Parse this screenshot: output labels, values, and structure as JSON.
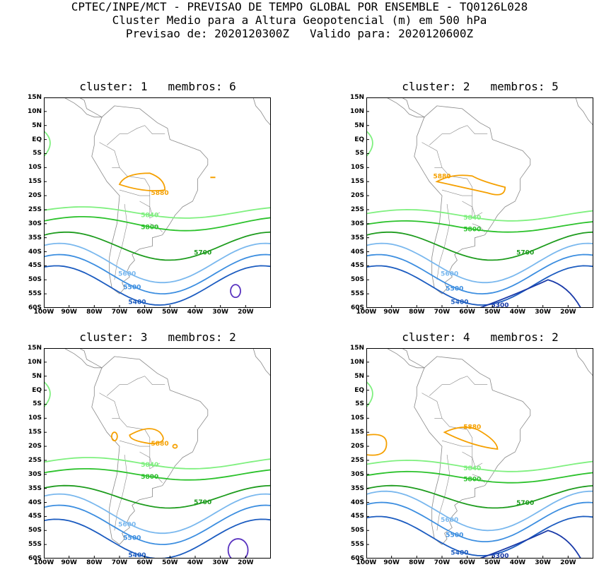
{
  "header": {
    "line1": "CPTEC/INPE/MCT - PREVISAO DE TEMPO GLOBAL POR ENSEMBLE - TQ0126L028",
    "line2": "Cluster Medio para a Altura Geopotencial (m) em 500 hPa",
    "line3": "Previsao de: 2020120300Z   Valido para: 2020120600Z"
  },
  "axes": {
    "lat": [
      "15N",
      "10N",
      "5N",
      "EQ",
      "5S",
      "10S",
      "15S",
      "20S",
      "25S",
      "30S",
      "35S",
      "40S",
      "45S",
      "50S",
      "55S",
      "60S"
    ],
    "lon": [
      "100W",
      "90W",
      "80W",
      "70W",
      "60W",
      "50W",
      "40W",
      "30W",
      "20W"
    ]
  },
  "colors": {
    "c5880": "#f5a000",
    "c5840": "#7ff07f",
    "c5800": "#2cc22c",
    "c5700": "#1e9c1e",
    "c5600": "#7ab8ee",
    "c5500": "#3c8ee0",
    "c5400": "#1c5cc0",
    "c5300": "#1a3aa8",
    "c5200": "#5a34c0",
    "coast": "#888888"
  },
  "contour_labels": {
    "c5880": "5880",
    "c5840": "5840",
    "c5800": "5800",
    "c5700": "5700",
    "c5600": "5600",
    "c5500": "5500",
    "c5400": "5400",
    "c5300": "5300"
  },
  "panels": [
    {
      "title": "cluster: 1   membros: 6"
    },
    {
      "title": "cluster: 2   membros: 5"
    },
    {
      "title": "cluster: 3   membros: 2"
    },
    {
      "title": "cluster: 4   membros: 2"
    }
  ]
}
